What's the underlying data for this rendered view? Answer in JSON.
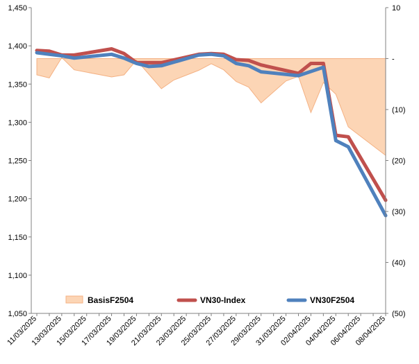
{
  "chart_data": {
    "type": "line",
    "title": "",
    "xlabel": "",
    "ylabel": "",
    "y2label": "",
    "legend_position": "bottom-inside",
    "grid": false,
    "x": [
      "11/03/2025",
      "12/03/2025",
      "13/03/2025",
      "14/03/2025",
      "15/03/2025",
      "16/03/2025",
      "17/03/2025",
      "18/03/2025",
      "19/03/2025",
      "20/03/2025",
      "21/03/2025",
      "22/03/2025",
      "23/03/2025",
      "24/03/2025",
      "25/03/2025",
      "26/03/2025",
      "27/03/2025",
      "28/03/2025",
      "29/03/2025",
      "30/03/2025",
      "31/03/2025",
      "01/04/2025",
      "02/04/2025",
      "03/04/2025",
      "04/04/2025",
      "05/04/2025",
      "06/04/2025",
      "07/04/2025",
      "08/04/2025"
    ],
    "x_tick_labels": [
      "11/03/2025",
      "13/03/2025",
      "15/03/2025",
      "17/03/2025",
      "19/03/2025",
      "21/03/2025",
      "23/03/2025",
      "25/03/2025",
      "27/03/2025",
      "29/03/2025",
      "31/03/2025",
      "02/04/2025",
      "04/04/2025",
      "06/04/2025",
      "08/04/2025"
    ],
    "y_left": {
      "min": 1050,
      "max": 1450,
      "ticks": [
        "1,050",
        "1,100",
        "1,150",
        "1,200",
        "1,250",
        "1,300",
        "1,350",
        "1,400",
        "1,450"
      ]
    },
    "y_right": {
      "min": -50,
      "max": 10,
      "ticks": [
        "10",
        "-",
        "(10)",
        "(20)",
        "(30)",
        "(40)",
        "(50)"
      ]
    },
    "colors": {
      "basis_fill": "#fcd5b5",
      "basis_stroke": "#f4b183",
      "vn30_index": "#c0504d",
      "vn30f": "#4f81bd"
    },
    "series": [
      {
        "name": "BasisF2504",
        "axis": "right",
        "kind": "area",
        "points": [
          [
            0,
            -3.2
          ],
          [
            1,
            -3.8
          ],
          [
            2,
            0.2
          ],
          [
            3,
            -2.2
          ],
          [
            6,
            -3.6
          ],
          [
            7,
            -3.2
          ],
          [
            8,
            -0.3
          ],
          [
            10,
            -5.9
          ],
          [
            11,
            -4.2
          ],
          [
            13,
            -2.3
          ],
          [
            14,
            -1.0
          ],
          [
            15,
            -2.2
          ],
          [
            16,
            -4.5
          ],
          [
            17,
            -5.6
          ],
          [
            18,
            -8.7
          ],
          [
            20,
            -4.4
          ],
          [
            21,
            -3.5
          ],
          [
            22,
            -10.6
          ],
          [
            23,
            -4.7
          ],
          [
            24,
            -7.0
          ],
          [
            25,
            -13.4
          ],
          [
            28,
            -19.0
          ]
        ]
      },
      {
        "name": "VN30-Index",
        "axis": "left",
        "kind": "line",
        "points": [
          [
            0,
            1394
          ],
          [
            1,
            1393
          ],
          [
            2,
            1388
          ],
          [
            3,
            1388
          ],
          [
            6,
            1396
          ],
          [
            7,
            1390
          ],
          [
            8,
            1378
          ],
          [
            10,
            1378
          ],
          [
            13,
            1389
          ],
          [
            14,
            1390
          ],
          [
            15,
            1389
          ],
          [
            16,
            1382
          ],
          [
            17,
            1381
          ],
          [
            18,
            1375
          ],
          [
            21,
            1364
          ],
          [
            22,
            1377
          ],
          [
            23,
            1377
          ],
          [
            24,
            1283
          ],
          [
            25,
            1281
          ],
          [
            28,
            1198
          ]
        ]
      },
      {
        "name": "VN30F2504",
        "axis": "left",
        "kind": "line",
        "points": [
          [
            0,
            1391
          ],
          [
            1,
            1389
          ],
          [
            2,
            1387
          ],
          [
            3,
            1384
          ],
          [
            6,
            1389
          ],
          [
            7,
            1384
          ],
          [
            8,
            1377
          ],
          [
            9,
            1373
          ],
          [
            10,
            1374
          ],
          [
            13,
            1388
          ],
          [
            14,
            1389
          ],
          [
            15,
            1387
          ],
          [
            16,
            1377
          ],
          [
            17,
            1374
          ],
          [
            18,
            1366
          ],
          [
            21,
            1361
          ],
          [
            23,
            1372
          ],
          [
            24,
            1276
          ],
          [
            25,
            1268
          ],
          [
            28,
            1178
          ]
        ]
      }
    ]
  }
}
